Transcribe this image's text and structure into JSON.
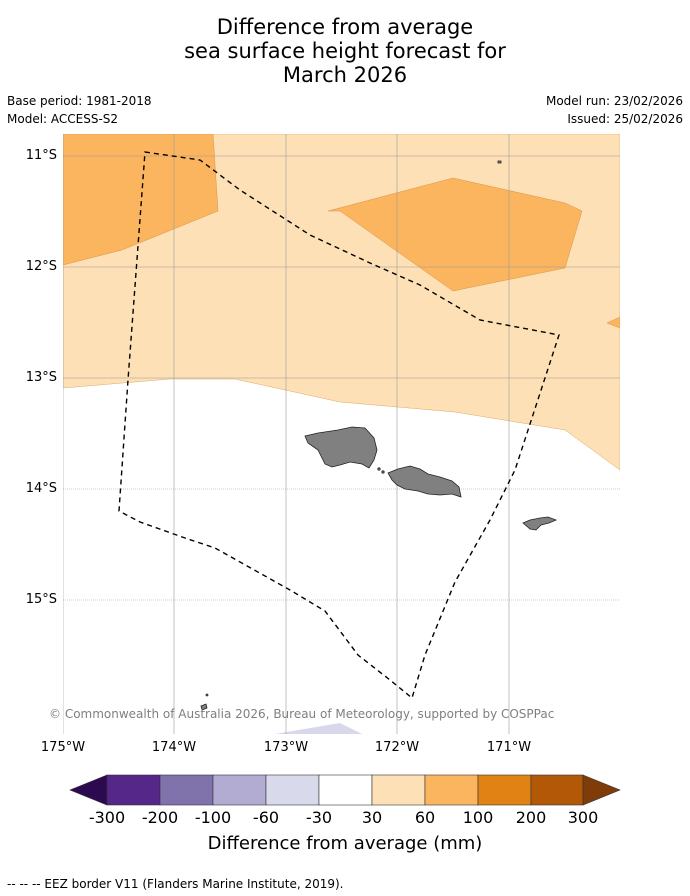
{
  "title": {
    "line1": "Difference from average",
    "line2": "sea surface height forecast for",
    "line3": "March 2026"
  },
  "meta": {
    "base_period": "Base period: 1981-2018",
    "model": "Model: ACCESS-S2",
    "model_run": "Model run: 23/02/2026",
    "issued": "Issued: 25/02/2026"
  },
  "map": {
    "lat_labels": [
      "11°S",
      "12°S",
      "13°S",
      "14°S",
      "15°S"
    ],
    "lon_labels": [
      "175°W",
      "174°W",
      "173°W",
      "172°W",
      "171°W"
    ],
    "copyright": "© Commonwealth of Australia 2026, Bureau of Meteorology, supported by COSPPac",
    "colors": {
      "land": "#808080",
      "band_30_60": "#fde0b6",
      "band_60_100": "#fbb55f",
      "band_minus60_minus30": "#d8d8ec",
      "eez_line": "#000000"
    }
  },
  "colorbar": {
    "title": "Difference from average (mm)",
    "ticks": [
      "-300",
      "-200",
      "-100",
      "-60",
      "-30",
      "30",
      "60",
      "100",
      "200",
      "300"
    ],
    "colors": {
      "under": "#2d0a4f",
      "c1": "#542788",
      "c2": "#8073ac",
      "c3": "#b2abd2",
      "c4": "#d8daeb",
      "c5": "#ffffff",
      "c6": "#fde0b6",
      "c7": "#fbb55f",
      "c8": "#e08214",
      "c9": "#b35806",
      "over": "#7f3b08"
    }
  },
  "footnote": "--  --  -- EEZ border V11 (Flanders Marine Institute, 2019)."
}
